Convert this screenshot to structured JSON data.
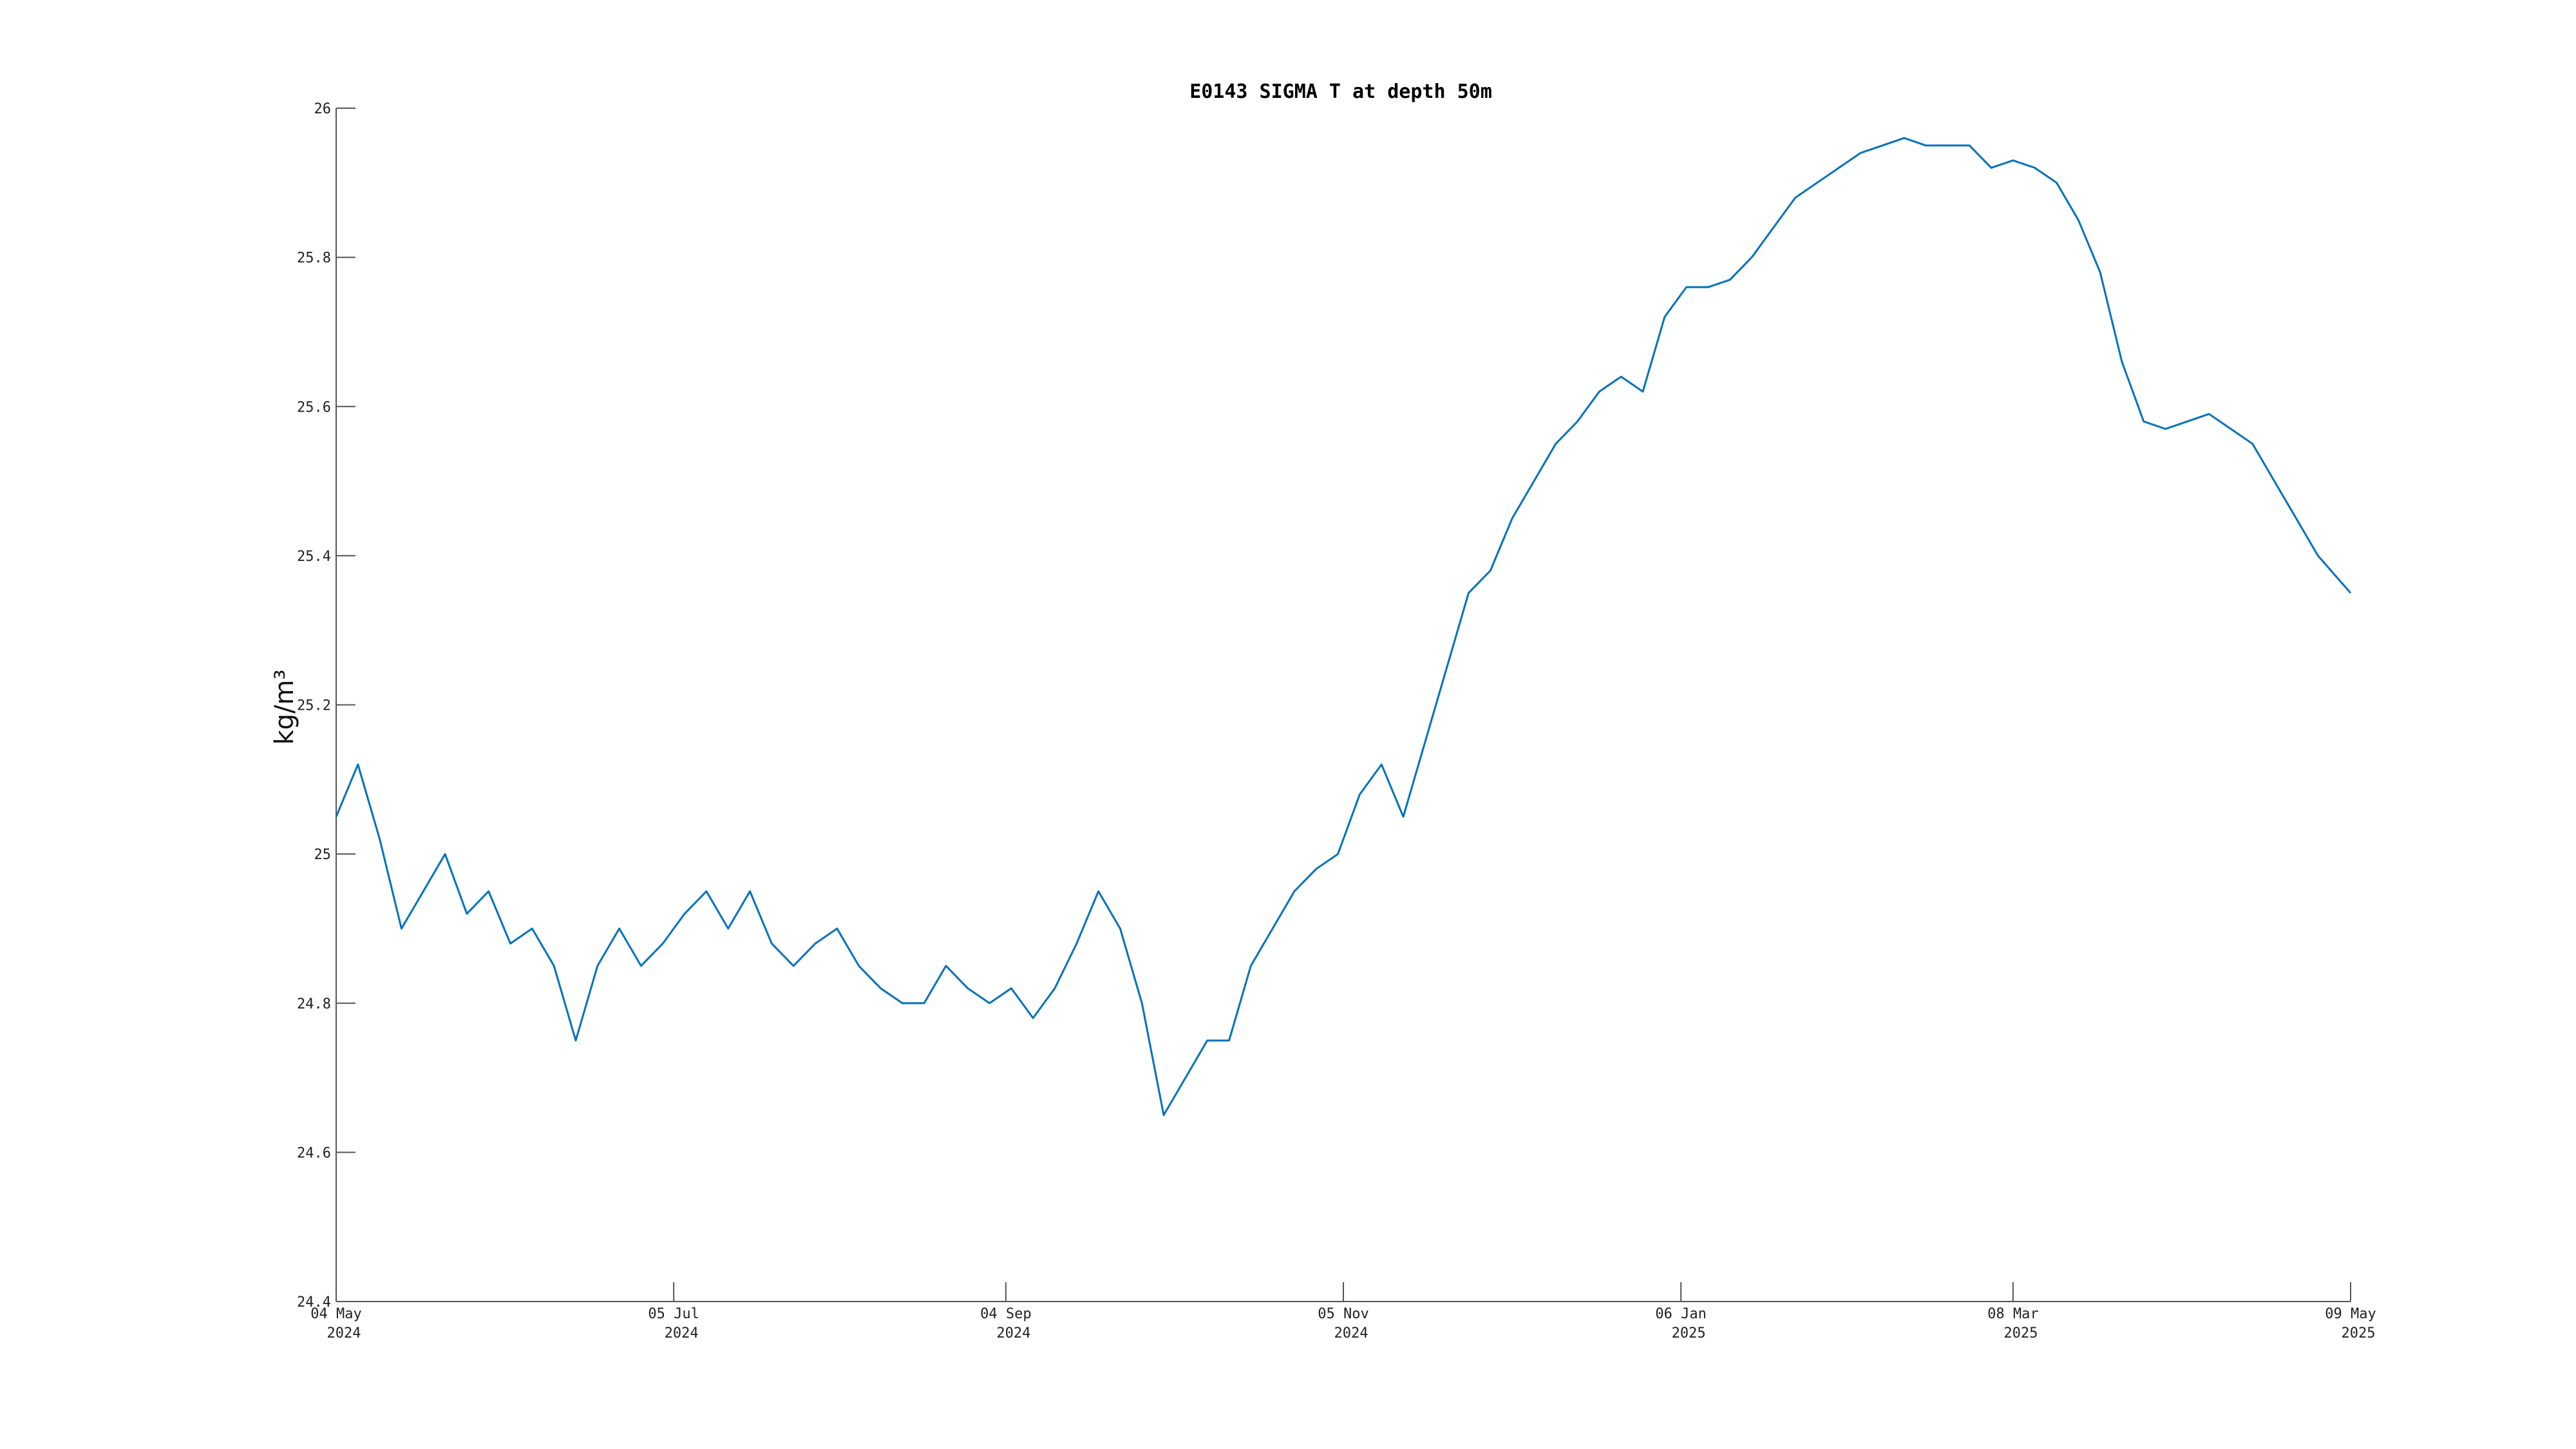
{
  "chart_data": {
    "type": "line",
    "title": "E0143 SIGMA T at depth 50m",
    "ylabel": "kg/m³",
    "xlabel": "",
    "ylim": [
      24.4,
      26.0
    ],
    "xlim": [
      "2024-05-04",
      "2025-05-09"
    ],
    "yticks": [
      "24.4",
      "24.6",
      "24.8",
      "25",
      "25.2",
      "25.4",
      "25.6",
      "25.8",
      "26"
    ],
    "xticks": [
      {
        "date": "2024-05-04",
        "line1": "04 May",
        "line2": "2024"
      },
      {
        "date": "2024-07-05",
        "line1": "05 Jul",
        "line2": "2024"
      },
      {
        "date": "2024-09-04",
        "line1": "04 Sep",
        "line2": "2024"
      },
      {
        "date": "2024-11-05",
        "line1": "05 Nov",
        "line2": "2024"
      },
      {
        "date": "2025-01-06",
        "line1": "06 Jan",
        "line2": "2025"
      },
      {
        "date": "2025-03-08",
        "line1": "08 Mar",
        "line2": "2025"
      },
      {
        "date": "2025-05-09",
        "line1": "09 May",
        "line2": "2025"
      }
    ],
    "grid": false,
    "series": [
      {
        "color": "#0072bd",
        "x": [
          "2024-05-04",
          "2024-05-08",
          "2024-05-12",
          "2024-05-16",
          "2024-05-20",
          "2024-05-24",
          "2024-05-28",
          "2024-06-01",
          "2024-06-05",
          "2024-06-09",
          "2024-06-13",
          "2024-06-17",
          "2024-06-21",
          "2024-06-25",
          "2024-06-29",
          "2024-07-03",
          "2024-07-07",
          "2024-07-11",
          "2024-07-15",
          "2024-07-19",
          "2024-07-23",
          "2024-07-27",
          "2024-07-31",
          "2024-08-04",
          "2024-08-08",
          "2024-08-12",
          "2024-08-16",
          "2024-08-20",
          "2024-08-24",
          "2024-08-28",
          "2024-09-01",
          "2024-09-05",
          "2024-09-09",
          "2024-09-13",
          "2024-09-17",
          "2024-09-21",
          "2024-09-25",
          "2024-09-29",
          "2024-10-03",
          "2024-10-07",
          "2024-10-11",
          "2024-10-15",
          "2024-10-19",
          "2024-10-23",
          "2024-10-27",
          "2024-10-31",
          "2024-11-04",
          "2024-11-08",
          "2024-11-12",
          "2024-11-16",
          "2024-11-20",
          "2024-11-24",
          "2024-11-28",
          "2024-12-02",
          "2024-12-06",
          "2024-12-10",
          "2024-12-14",
          "2024-12-18",
          "2024-12-22",
          "2024-12-26",
          "2024-12-30",
          "2025-01-03",
          "2025-01-07",
          "2025-01-11",
          "2025-01-15",
          "2025-01-19",
          "2025-01-23",
          "2025-01-27",
          "2025-01-31",
          "2025-02-04",
          "2025-02-08",
          "2025-02-12",
          "2025-02-16",
          "2025-02-20",
          "2025-02-24",
          "2025-02-28",
          "2025-03-04",
          "2025-03-08",
          "2025-03-12",
          "2025-03-16",
          "2025-03-20",
          "2025-03-24",
          "2025-03-28",
          "2025-04-01",
          "2025-04-05",
          "2025-04-09",
          "2025-04-13",
          "2025-04-17",
          "2025-04-21",
          "2025-04-25",
          "2025-04-29",
          "2025-05-03",
          "2025-05-09"
        ],
        "y": [
          25.05,
          25.12,
          25.02,
          24.9,
          24.95,
          25.0,
          24.92,
          24.95,
          24.88,
          24.9,
          24.85,
          24.75,
          24.85,
          24.9,
          24.85,
          24.88,
          24.92,
          24.95,
          24.9,
          24.95,
          24.88,
          24.85,
          24.88,
          24.9,
          24.85,
          24.82,
          24.8,
          24.8,
          24.85,
          24.82,
          24.8,
          24.82,
          24.78,
          24.82,
          24.88,
          24.95,
          24.9,
          24.8,
          24.65,
          24.7,
          24.75,
          24.75,
          24.85,
          24.9,
          24.95,
          24.98,
          25.0,
          25.08,
          25.12,
          25.05,
          25.15,
          25.25,
          25.35,
          25.38,
          25.45,
          25.5,
          25.55,
          25.58,
          25.62,
          25.64,
          25.62,
          25.72,
          25.76,
          25.76,
          25.77,
          25.8,
          25.84,
          25.88,
          25.9,
          25.92,
          25.94,
          25.95,
          25.96,
          25.95,
          25.95,
          25.95,
          25.92,
          25.93,
          25.92,
          25.9,
          25.85,
          25.78,
          25.66,
          25.58,
          25.57,
          25.58,
          25.59,
          25.57,
          25.55,
          25.5,
          25.45,
          25.4,
          25.35
        ]
      }
    ]
  }
}
